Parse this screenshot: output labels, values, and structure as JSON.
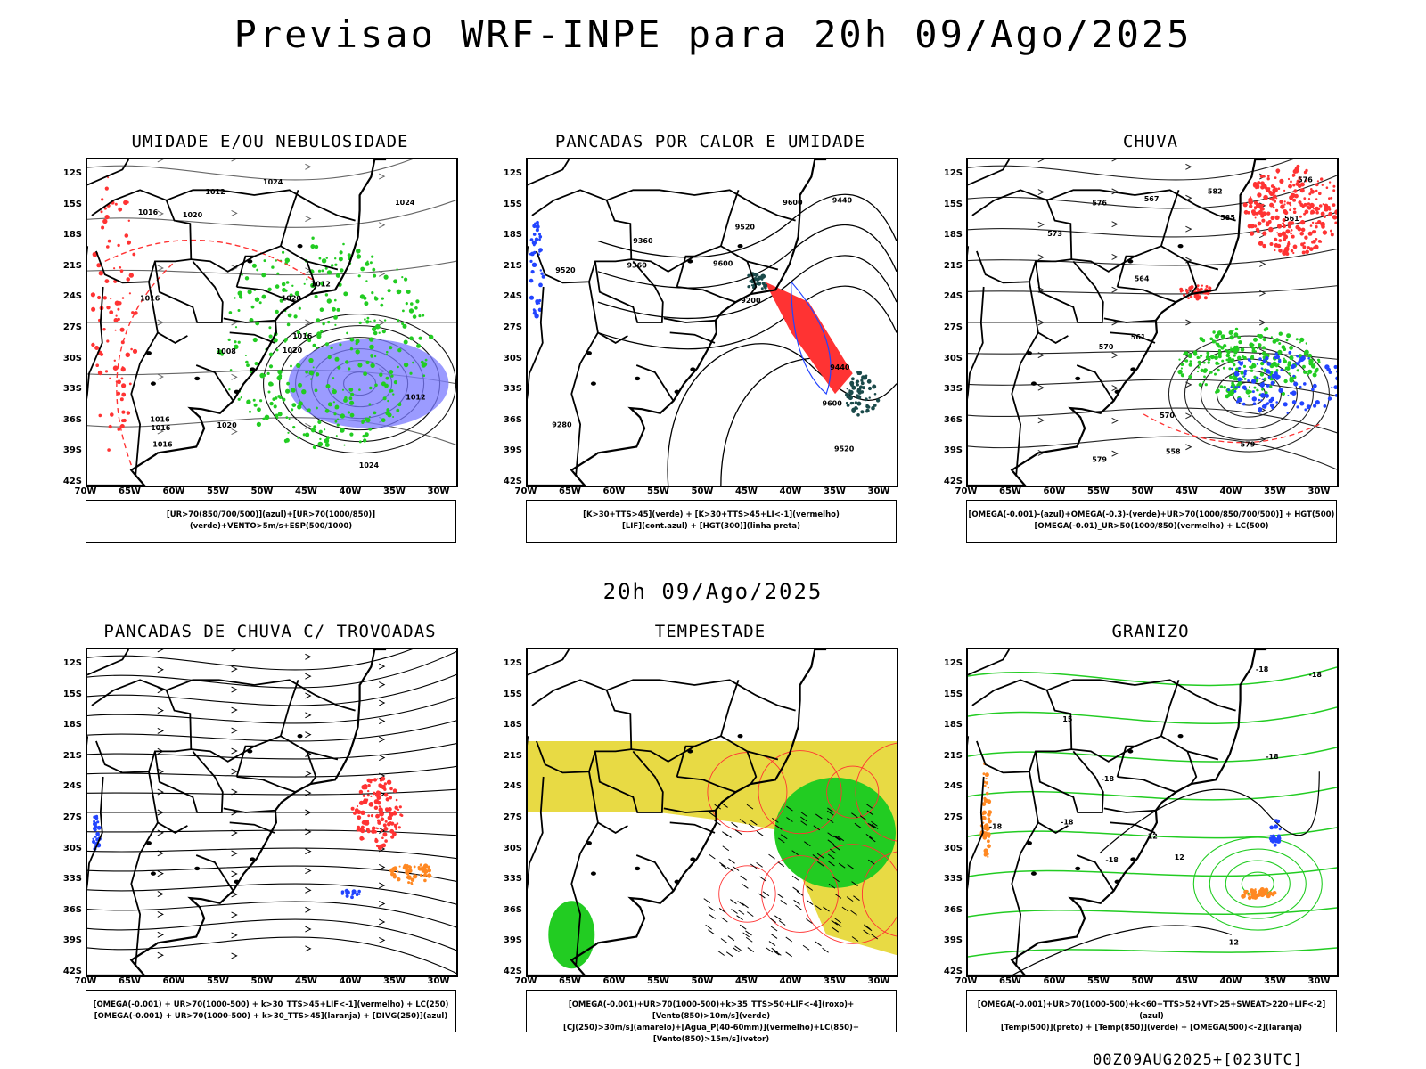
{
  "main_title": "Previsao WRF-INPE  para 20h 09/Ago/2025",
  "mid_date": "20h 09/Ago/2025",
  "footer_run": "00Z09AUG2025+[023UTC]",
  "lat_ticks": [
    "12S",
    "15S",
    "18S",
    "21S",
    "24S",
    "27S",
    "30S",
    "33S",
    "36S",
    "39S",
    "42S"
  ],
  "lon_ticks": [
    "70W",
    "65W",
    "60W",
    "55W",
    "50W",
    "45W",
    "40W",
    "35W",
    "30W"
  ],
  "colors": {
    "green": "#22cc22",
    "red": "#ff3333",
    "blue": "#2244ff",
    "purple": "#7a7aff",
    "darkteal": "#1a4a4a",
    "yellow": "#e6d630",
    "orange": "#ff8822"
  },
  "panels": [
    {
      "title": "UMIDADE E/OU NEBULOSIDADE",
      "legend_lines": [
        "[UR>70(850/700/500)](azul)+[UR>70(1000/850)](verde)+VENTO>5m/s+ESP(500/1000)"
      ],
      "contour_labels": [
        "1016",
        "1012",
        "1016",
        "1020",
        "1016",
        "1020",
        "1024",
        "1024",
        "1016",
        "1012",
        "1008",
        "1016",
        "1020",
        "1024",
        "1016",
        "1012",
        "1020"
      ]
    },
    {
      "title": "PANCADAS POR CALOR E UMIDADE",
      "legend_lines": [
        "[K>30+TTS>45](verde) + [K>30+TTS>45+LI<-1](vermelho)",
        "[LIF](cont.azul) + [HGT(300)](linha preta)"
      ],
      "contour_labels": [
        "9520",
        "9600",
        "9600",
        "9600",
        "9520",
        "9520",
        "9440",
        "9440",
        "9360",
        "9280",
        "9200",
        "9360"
      ]
    },
    {
      "title": "CHUVA",
      "legend_lines": [
        "[OMEGA(-0.001)-(azul)+OMEGA(-0.3)-(verde)+UR>70(1000/850/700/500)] + HGT(500)",
        "[OMEGA(-0.01)_UR>50(1000/850)(vermelho) + LC(500)"
      ],
      "contour_labels": [
        "582",
        "579",
        "579",
        "576",
        "573",
        "570",
        "576",
        "567",
        "564",
        "561",
        "558",
        "561",
        "570",
        "585"
      ]
    },
    {
      "title": "PANCADAS DE CHUVA C/ TROVOADAS",
      "legend_lines": [
        "[OMEGA(-0.001) + UR>70(1000-500) + k>30_TTS>45+LIF<-1](vermelho) + LC(250)",
        "[OMEGA(-0.001) + UR>70(1000-500) + k>30_TTS>45](laranja) + [DIVG(250)](azul)"
      ],
      "contour_labels": []
    },
    {
      "title": "TEMPESTADE",
      "legend_lines": [
        "[OMEGA(-0.001)+UR>70(1000-500)+k>35_TTS>50+LIF<-4](roxo)+[Vento(850)>10m/s](verde)",
        "[CJ(250)>30m/s](amarelo)+[Agua_P(40-60mm)](vermelho)+LC(850)+[Vento(850)>15m/s](vetor)"
      ],
      "contour_labels": []
    },
    {
      "title": "GRANIZO",
      "legend_lines": [
        "[OMEGA(-0.001)+UR>70(1000-500)+k<60+TTS>52+VT>25+SWEAT>220+LIF<-2](azul)",
        "[Temp(500)](preto) + [Temp(850)](verde) + [OMEGA(500)<-2](laranja)"
      ],
      "contour_labels": [
        "-18",
        "-18",
        "-18",
        "-18",
        "-18",
        "-18",
        "-18",
        "12",
        "12",
        "12",
        "15"
      ]
    }
  ]
}
